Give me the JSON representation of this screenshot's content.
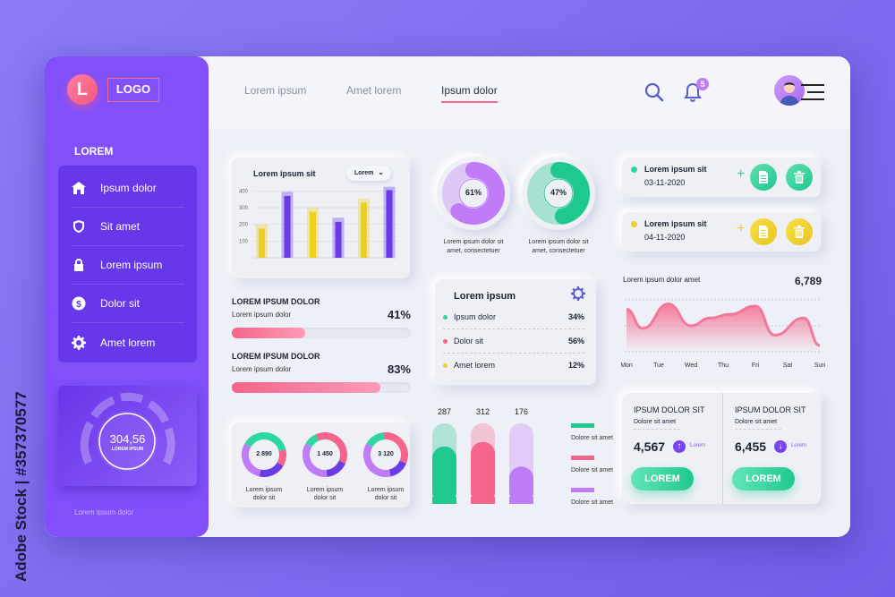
{
  "watermark_side": "Adobe Stock | #357370577",
  "sidebar": {
    "logo_letter": "L",
    "logo_text": "LOGO",
    "section": "LOREM",
    "items": [
      {
        "label": "Ipsum dolor",
        "icon": "home-icon"
      },
      {
        "label": "Sit amet",
        "icon": "shield-icon"
      },
      {
        "label": "Lorem ipsum",
        "icon": "lock-icon"
      },
      {
        "label": "Dolor sit",
        "icon": "dollar-icon"
      },
      {
        "label": "Amet lorem",
        "icon": "gear-icon"
      }
    ],
    "gauge": {
      "value": "304,56",
      "label": "LOREM IPSUM"
    },
    "footer": "Lorem ipsum dolor"
  },
  "header": {
    "tabs": [
      "Lorem ipsum",
      "Amet lorem",
      "Ipsum dolor"
    ],
    "active_tab": 2,
    "notifications": "5"
  },
  "colors": {
    "purple": "#8150fb",
    "pink": "#f5658b",
    "green": "#1fc88e",
    "yellow": "#ebc91f"
  },
  "bar_card": {
    "title": "Lorem ipsum sit",
    "dropdown": "Lorem"
  },
  "chart_data": [
    {
      "type": "bar",
      "title": "Lorem ipsum sit",
      "yticks": [
        100,
        200,
        300,
        400
      ],
      "ylim": [
        0,
        450
      ],
      "grid": true,
      "values": [
        175,
        370,
        275,
        215,
        330,
        405
      ],
      "background_values": [
        200,
        395,
        300,
        240,
        355,
        425
      ],
      "colors": [
        "#ebd21f",
        "#6b3be8",
        "#ebd21f",
        "#6b3be8",
        "#ebd21f",
        "#6b3be8"
      ]
    },
    {
      "type": "area",
      "title": "Lorem ipsum dolor amet",
      "total": "6,789",
      "categories": [
        "Mon",
        "Tue",
        "Wed",
        "Thu",
        "Fri",
        "Sat",
        "Sun"
      ],
      "x": [
        0,
        0.5,
        1.3,
        2,
        2.6,
        3.2,
        4,
        4.6,
        5.5,
        6
      ],
      "values": [
        82,
        45,
        92,
        50,
        65,
        72,
        88,
        32,
        65,
        12
      ],
      "grid": true
    },
    {
      "type": "bar",
      "values": [
        287,
        312,
        176
      ],
      "max": [
        400,
        400,
        400
      ],
      "legend": [
        "Dolore sit amet",
        "Dolore sit amet",
        "Dolore sit amet"
      ],
      "colors": [
        "#1fc88e",
        "#f5658b",
        "#c07cf7"
      ]
    }
  ],
  "progress": [
    {
      "title": "LOREM IPSUM DOLOR",
      "label": "Lorem ipsum dolor",
      "percent": 41,
      "text": "41%"
    },
    {
      "title": "LOREM IPSUM DOLOR",
      "label": "Lorem ipsum dolor",
      "percent": 83,
      "text": "83%"
    }
  ],
  "rings": [
    {
      "value": 61,
      "text": "61%",
      "caption1": "Lorem ipsum dolor sit",
      "caption2": "amet, consectetuer",
      "color": "#c07cf7"
    },
    {
      "value": 47,
      "text": "47%",
      "caption1": "Lorem ipsum dolor sit",
      "caption2": "amet, consectetuer",
      "color": "#1fc88e"
    }
  ],
  "legend_card": {
    "title": "Lorem ipsum",
    "rows": [
      {
        "label": "Ipsum dolor",
        "value": "34%",
        "color": "#2ed6a0"
      },
      {
        "label": "Dolor sit",
        "value": "56%",
        "color": "#f5658b"
      },
      {
        "label": "Amet lorem",
        "value": "12%",
        "color": "#ebd21f"
      }
    ]
  },
  "donuts": [
    {
      "value": "2 890",
      "caption1": "Lorem ipsum",
      "caption2": "dolor sit"
    },
    {
      "value": "1 450",
      "caption1": "Lorem ipsum",
      "caption2": "dolor sit"
    },
    {
      "value": "3 120",
      "caption1": "Lorem ipsum",
      "caption2": "dolor sit"
    }
  ],
  "tasks": [
    {
      "title": "Lorem ipsum sit",
      "date": "03-11-2020",
      "color": "green"
    },
    {
      "title": "Lorem ipsum sit",
      "date": "04-11-2020",
      "color": "yellow"
    }
  ],
  "stats": [
    {
      "title": "IPSUM DOLOR SIT",
      "subtitle": "Dolore sit amet",
      "value": "4,567",
      "trend": "up",
      "trend_label": "Lorem",
      "button": "LOREM"
    },
    {
      "title": "IPSUM DOLOR SIT",
      "subtitle": "Dolore sit amet",
      "value": "6,455",
      "trend": "down",
      "trend_label": "Lorem",
      "button": "LOREM"
    }
  ]
}
